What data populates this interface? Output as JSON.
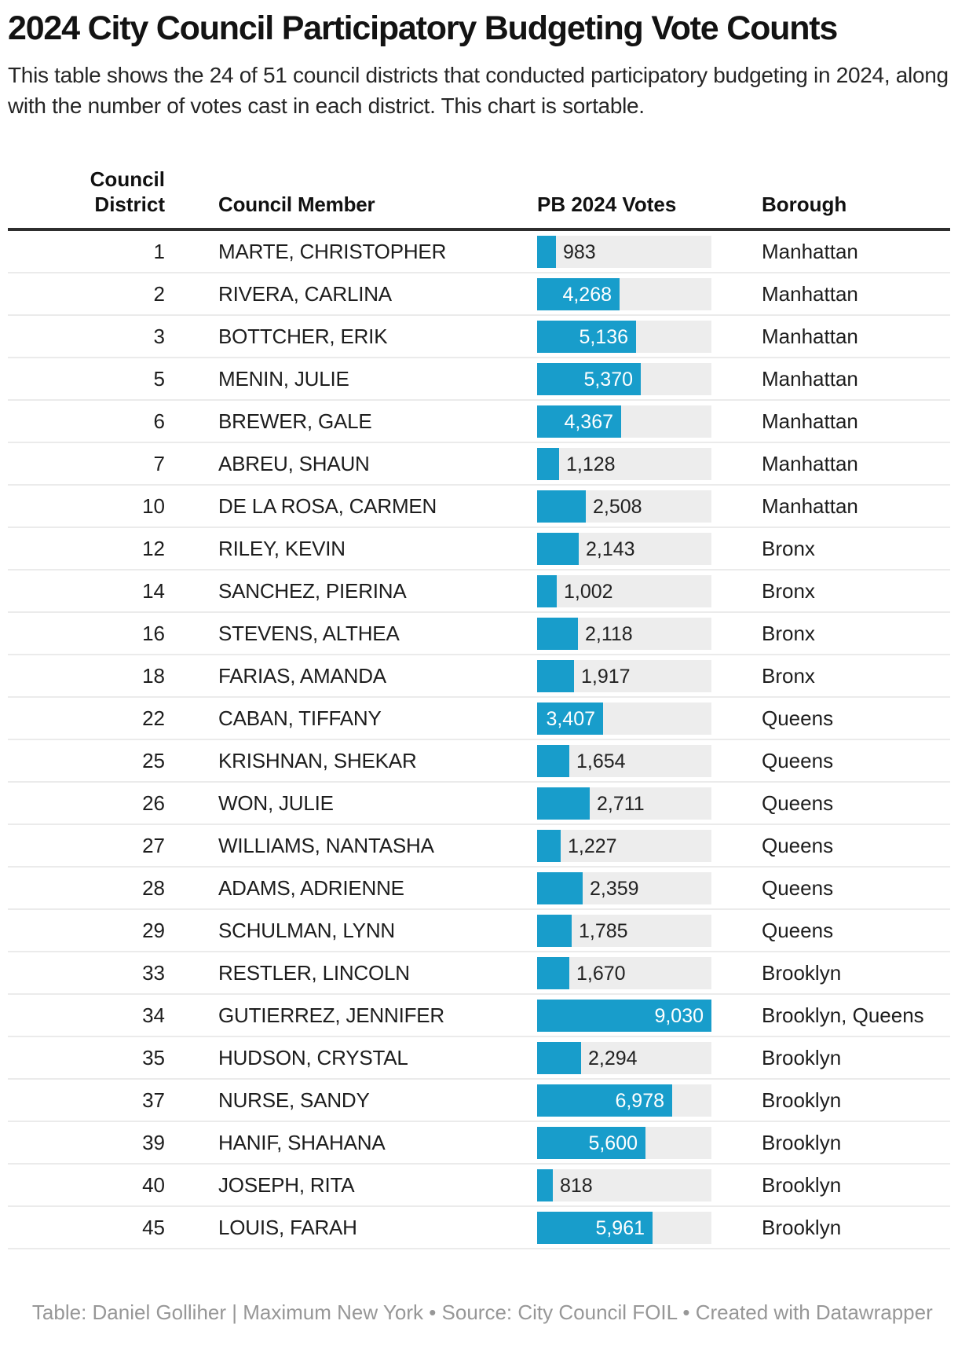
{
  "header": {
    "title": "2024 City Council Participatory Budgeting Vote Counts",
    "description": "This table shows the 24 of 51 council districts that conducted participatory budgeting in 2024, along with the number of votes cast in each district. This chart is sortable."
  },
  "chart_data": {
    "type": "table",
    "title": "2024 City Council Participatory Budgeting Vote Counts",
    "bar_color": "#189dcb",
    "track_color": "#ededed",
    "max_votes": 9030,
    "columns": [
      {
        "label": "Council District",
        "line1": "Council",
        "line2": "District"
      },
      {
        "label": "Council Member"
      },
      {
        "label": "PB 2024 Votes"
      },
      {
        "label": "Borough"
      }
    ],
    "rows": [
      {
        "district": "1",
        "member": "MARTE, CHRISTOPHER",
        "votes": 983,
        "votes_display": "983",
        "borough": "Manhattan"
      },
      {
        "district": "2",
        "member": "RIVERA, CARLINA",
        "votes": 4268,
        "votes_display": "4,268",
        "borough": "Manhattan"
      },
      {
        "district": "3",
        "member": "BOTTCHER, ERIK",
        "votes": 5136,
        "votes_display": "5,136",
        "borough": "Manhattan"
      },
      {
        "district": "5",
        "member": "MENIN, JULIE",
        "votes": 5370,
        "votes_display": "5,370",
        "borough": "Manhattan"
      },
      {
        "district": "6",
        "member": "BREWER, GALE",
        "votes": 4367,
        "votes_display": "4,367",
        "borough": "Manhattan"
      },
      {
        "district": "7",
        "member": "ABREU, SHAUN",
        "votes": 1128,
        "votes_display": "1,128",
        "borough": "Manhattan"
      },
      {
        "district": "10",
        "member": "DE LA ROSA, CARMEN",
        "votes": 2508,
        "votes_display": "2,508",
        "borough": "Manhattan"
      },
      {
        "district": "12",
        "member": "RILEY, KEVIN",
        "votes": 2143,
        "votes_display": "2,143",
        "borough": "Bronx"
      },
      {
        "district": "14",
        "member": "SANCHEZ, PIERINA",
        "votes": 1002,
        "votes_display": "1,002",
        "borough": "Bronx"
      },
      {
        "district": "16",
        "member": "STEVENS, ALTHEA",
        "votes": 2118,
        "votes_display": "2,118",
        "borough": "Bronx"
      },
      {
        "district": "18",
        "member": "FARIAS, AMANDA",
        "votes": 1917,
        "votes_display": "1,917",
        "borough": "Bronx"
      },
      {
        "district": "22",
        "member": "CABAN, TIFFANY",
        "votes": 3407,
        "votes_display": "3,407",
        "borough": "Queens"
      },
      {
        "district": "25",
        "member": "KRISHNAN, SHEKAR",
        "votes": 1654,
        "votes_display": "1,654",
        "borough": "Queens"
      },
      {
        "district": "26",
        "member": "WON, JULIE",
        "votes": 2711,
        "votes_display": "2,711",
        "borough": "Queens"
      },
      {
        "district": "27",
        "member": "WILLIAMS, NANTASHA",
        "votes": 1227,
        "votes_display": "1,227",
        "borough": "Queens"
      },
      {
        "district": "28",
        "member": "ADAMS, ADRIENNE",
        "votes": 2359,
        "votes_display": "2,359",
        "borough": "Queens"
      },
      {
        "district": "29",
        "member": "SCHULMAN, LYNN",
        "votes": 1785,
        "votes_display": "1,785",
        "borough": "Queens"
      },
      {
        "district": "33",
        "member": "RESTLER, LINCOLN",
        "votes": 1670,
        "votes_display": "1,670",
        "borough": "Brooklyn"
      },
      {
        "district": "34",
        "member": "GUTIERREZ, JENNIFER",
        "votes": 9030,
        "votes_display": "9,030",
        "borough": "Brooklyn, Queens"
      },
      {
        "district": "35",
        "member": "HUDSON, CRYSTAL",
        "votes": 2294,
        "votes_display": "2,294",
        "borough": "Brooklyn"
      },
      {
        "district": "37",
        "member": "NURSE, SANDY",
        "votes": 6978,
        "votes_display": "6,978",
        "borough": "Brooklyn"
      },
      {
        "district": "39",
        "member": "HANIF, SHAHANA",
        "votes": 5600,
        "votes_display": "5,600",
        "borough": "Brooklyn"
      },
      {
        "district": "40",
        "member": "JOSEPH, RITA",
        "votes": 818,
        "votes_display": "818",
        "borough": "Brooklyn"
      },
      {
        "district": "45",
        "member": "LOUIS, FARAH",
        "votes": 5961,
        "votes_display": "5,961",
        "borough": "Brooklyn"
      }
    ]
  },
  "footer": {
    "table_label": "Table: ",
    "byline": "Daniel Golliher | Maximum New York",
    "sep1": " • ",
    "source_label": "Source: ",
    "source": "City Council FOIL",
    "sep2": " • ",
    "created_label": "Created with ",
    "tool": "Datawrapper"
  }
}
